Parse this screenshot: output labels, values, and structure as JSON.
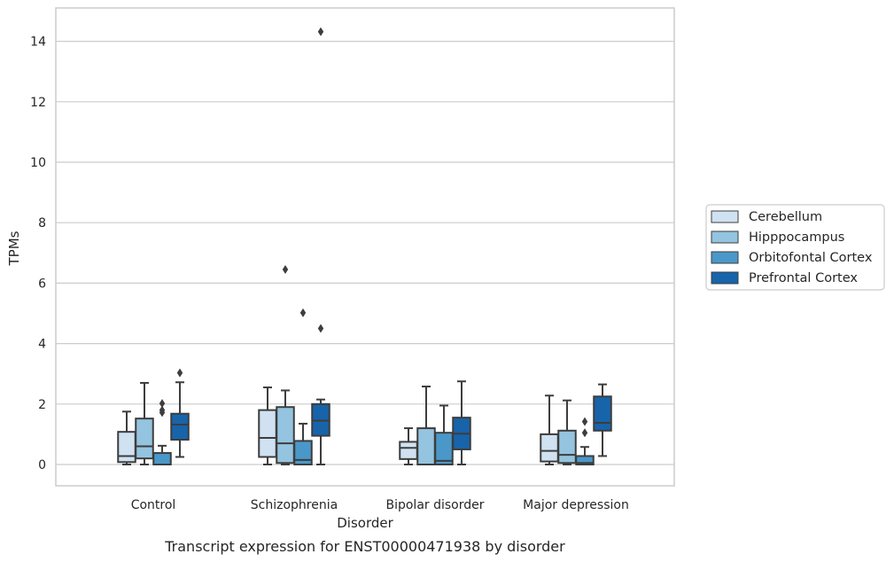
{
  "chart_data": {
    "type": "box",
    "xlabel": "Disorder",
    "ylabel": "TPMs",
    "caption": "Transcript expression for ENST00000471938 by disorder",
    "ylim": [
      -0.7,
      15.1
    ],
    "yticks": [
      "0",
      "2",
      "4",
      "6",
      "8",
      "10",
      "12",
      "14"
    ],
    "grid": "horizontal",
    "legend_position": "right",
    "categories": [
      "Control",
      "Schizophrenia",
      "Bipolar disorder",
      "Major depression"
    ],
    "series": [
      {
        "name": "Cerebellum",
        "color": "#d0e1f2",
        "boxes": [
          {
            "whislo": 0.0,
            "q1": 0.08,
            "med": 0.28,
            "q3": 1.08,
            "whishi": 1.75,
            "fliers": []
          },
          {
            "whislo": 0.0,
            "q1": 0.25,
            "med": 0.88,
            "q3": 1.8,
            "whishi": 2.55,
            "fliers": []
          },
          {
            "whislo": 0.0,
            "q1": 0.18,
            "med": 0.55,
            "q3": 0.75,
            "whishi": 1.2,
            "fliers": []
          },
          {
            "whislo": 0.0,
            "q1": 0.1,
            "med": 0.45,
            "q3": 1.0,
            "whishi": 2.28,
            "fliers": []
          }
        ]
      },
      {
        "name": "Hipppocampus",
        "color": "#94c4df",
        "boxes": [
          {
            "whislo": 0.0,
            "q1": 0.2,
            "med": 0.6,
            "q3": 1.52,
            "whishi": 2.7,
            "fliers": []
          },
          {
            "whislo": 0.0,
            "q1": 0.05,
            "med": 0.7,
            "q3": 1.9,
            "whishi": 2.45,
            "fliers": [
              6.45
            ]
          },
          {
            "whislo": 0.0,
            "q1": 0.0,
            "med": 0.0,
            "q3": 1.2,
            "whishi": 2.58,
            "fliers": []
          },
          {
            "whislo": 0.0,
            "q1": 0.05,
            "med": 0.32,
            "q3": 1.12,
            "whishi": 2.12,
            "fliers": []
          }
        ]
      },
      {
        "name": "Orbitofontal Cortex",
        "color": "#4a98c9",
        "boxes": [
          {
            "whislo": 0.0,
            "q1": 0.0,
            "med": 0.0,
            "q3": 0.38,
            "whishi": 0.62,
            "fliers": [
              1.72,
              1.8,
              2.02
            ]
          },
          {
            "whislo": 0.0,
            "q1": 0.0,
            "med": 0.15,
            "q3": 0.78,
            "whishi": 1.35,
            "fliers": [
              5.02
            ]
          },
          {
            "whislo": 0.0,
            "q1": 0.0,
            "med": 0.12,
            "q3": 1.05,
            "whishi": 1.95,
            "fliers": []
          },
          {
            "whislo": 0.0,
            "q1": 0.0,
            "med": 0.05,
            "q3": 0.28,
            "whishi": 0.58,
            "fliers": [
              1.05,
              1.42
            ]
          }
        ]
      },
      {
        "name": "Prefrontal Cortex",
        "color": "#1764ab",
        "boxes": [
          {
            "whislo": 0.25,
            "q1": 0.82,
            "med": 1.32,
            "q3": 1.68,
            "whishi": 2.72,
            "fliers": [
              3.03
            ]
          },
          {
            "whislo": 0.0,
            "q1": 0.95,
            "med": 1.45,
            "q3": 2.0,
            "whishi": 2.15,
            "fliers": [
              4.5,
              14.32
            ]
          },
          {
            "whislo": 0.0,
            "q1": 0.5,
            "med": 1.02,
            "q3": 1.55,
            "whishi": 2.75,
            "fliers": []
          },
          {
            "whislo": 0.28,
            "q1": 1.12,
            "med": 1.38,
            "q3": 2.25,
            "whishi": 2.65,
            "fliers": []
          }
        ]
      }
    ]
  }
}
